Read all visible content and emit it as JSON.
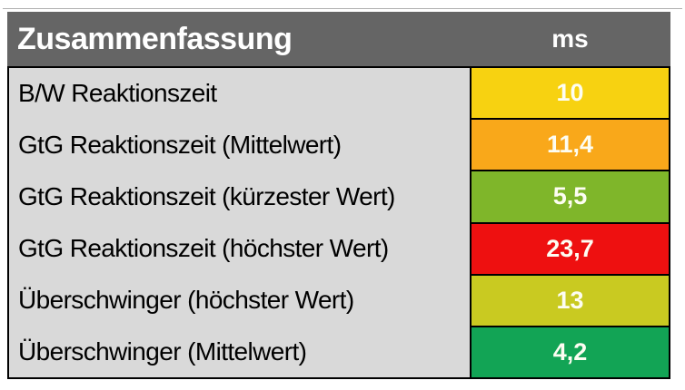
{
  "table": {
    "header": {
      "title": "Zusammenfassung",
      "unit_label": "ms",
      "bg": "#656565",
      "text_color": "#ffffff"
    },
    "label_bg": "#d9d9d9",
    "border_color": "#000000",
    "rows": [
      {
        "label": "B/W Reaktionszeit",
        "value": "10",
        "value_bg": "#f7d211"
      },
      {
        "label": "GtG Reaktionszeit (Mittelwert)",
        "value": "11,4",
        "value_bg": "#f9a81a"
      },
      {
        "label": "GtG Reaktionszeit (kürzester Wert)",
        "value": "5,5",
        "value_bg": "#7fb62a"
      },
      {
        "label": "GtG Reaktionszeit (höchster Wert)",
        "value": "23,7",
        "value_bg": "#ee1010"
      },
      {
        "label": "Überschwinger (höchster Wert)",
        "value": "13",
        "value_bg": "#c9ca21"
      },
      {
        "label": "Überschwinger (Mittelwert)",
        "value": "4,2",
        "value_bg": "#12a455"
      }
    ]
  },
  "chart_data": {
    "type": "table",
    "title": "Zusammenfassung",
    "unit": "ms",
    "categories": [
      "B/W Reaktionszeit",
      "GtG Reaktionszeit (Mittelwert)",
      "GtG Reaktionszeit (kürzester Wert)",
      "GtG Reaktionszeit (höchster Wert)",
      "Überschwinger (höchster Wert)",
      "Überschwinger (Mittelwert)"
    ],
    "values": [
      10,
      11.4,
      5.5,
      23.7,
      13,
      4.2
    ],
    "value_colors": [
      "#f7d211",
      "#f9a81a",
      "#7fb62a",
      "#ee1010",
      "#c9ca21",
      "#12a455"
    ]
  }
}
